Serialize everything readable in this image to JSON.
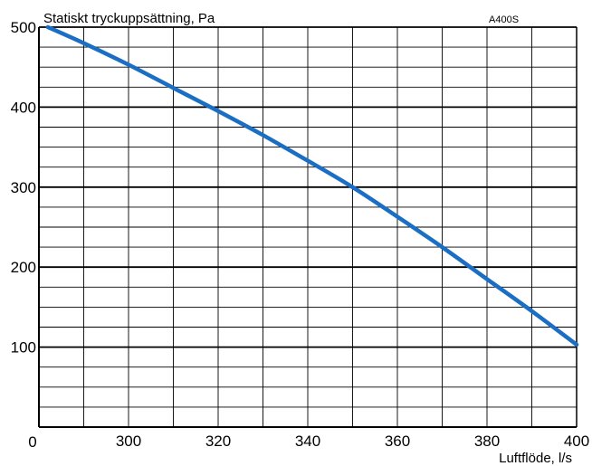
{
  "chart_data": {
    "type": "line",
    "ylabel": "Statiskt tryckuppsättning, Pa",
    "xlabel": "Luftflöde, l/s",
    "annotation": "A400S",
    "x_origin_label": "0",
    "xlim": [
      280,
      400
    ],
    "ylim": [
      0,
      500
    ],
    "x_ticks": [
      300,
      320,
      340,
      360,
      380,
      400
    ],
    "x_tick_labels": [
      "300",
      "320",
      "340",
      "360",
      "380",
      "400"
    ],
    "y_ticks": [
      100,
      200,
      300,
      400,
      500
    ],
    "y_tick_labels": [
      "100",
      "200",
      "300",
      "400",
      "500"
    ],
    "grid": true,
    "series": [
      {
        "color": "#1a6fc4",
        "x": [
          282,
          290,
          300,
          310,
          320,
          330,
          340,
          350,
          360,
          370,
          380,
          390,
          400
        ],
        "y": [
          500,
          480,
          453,
          424,
          395,
          365,
          333,
          300,
          263,
          225,
          185,
          145,
          103
        ]
      }
    ]
  }
}
